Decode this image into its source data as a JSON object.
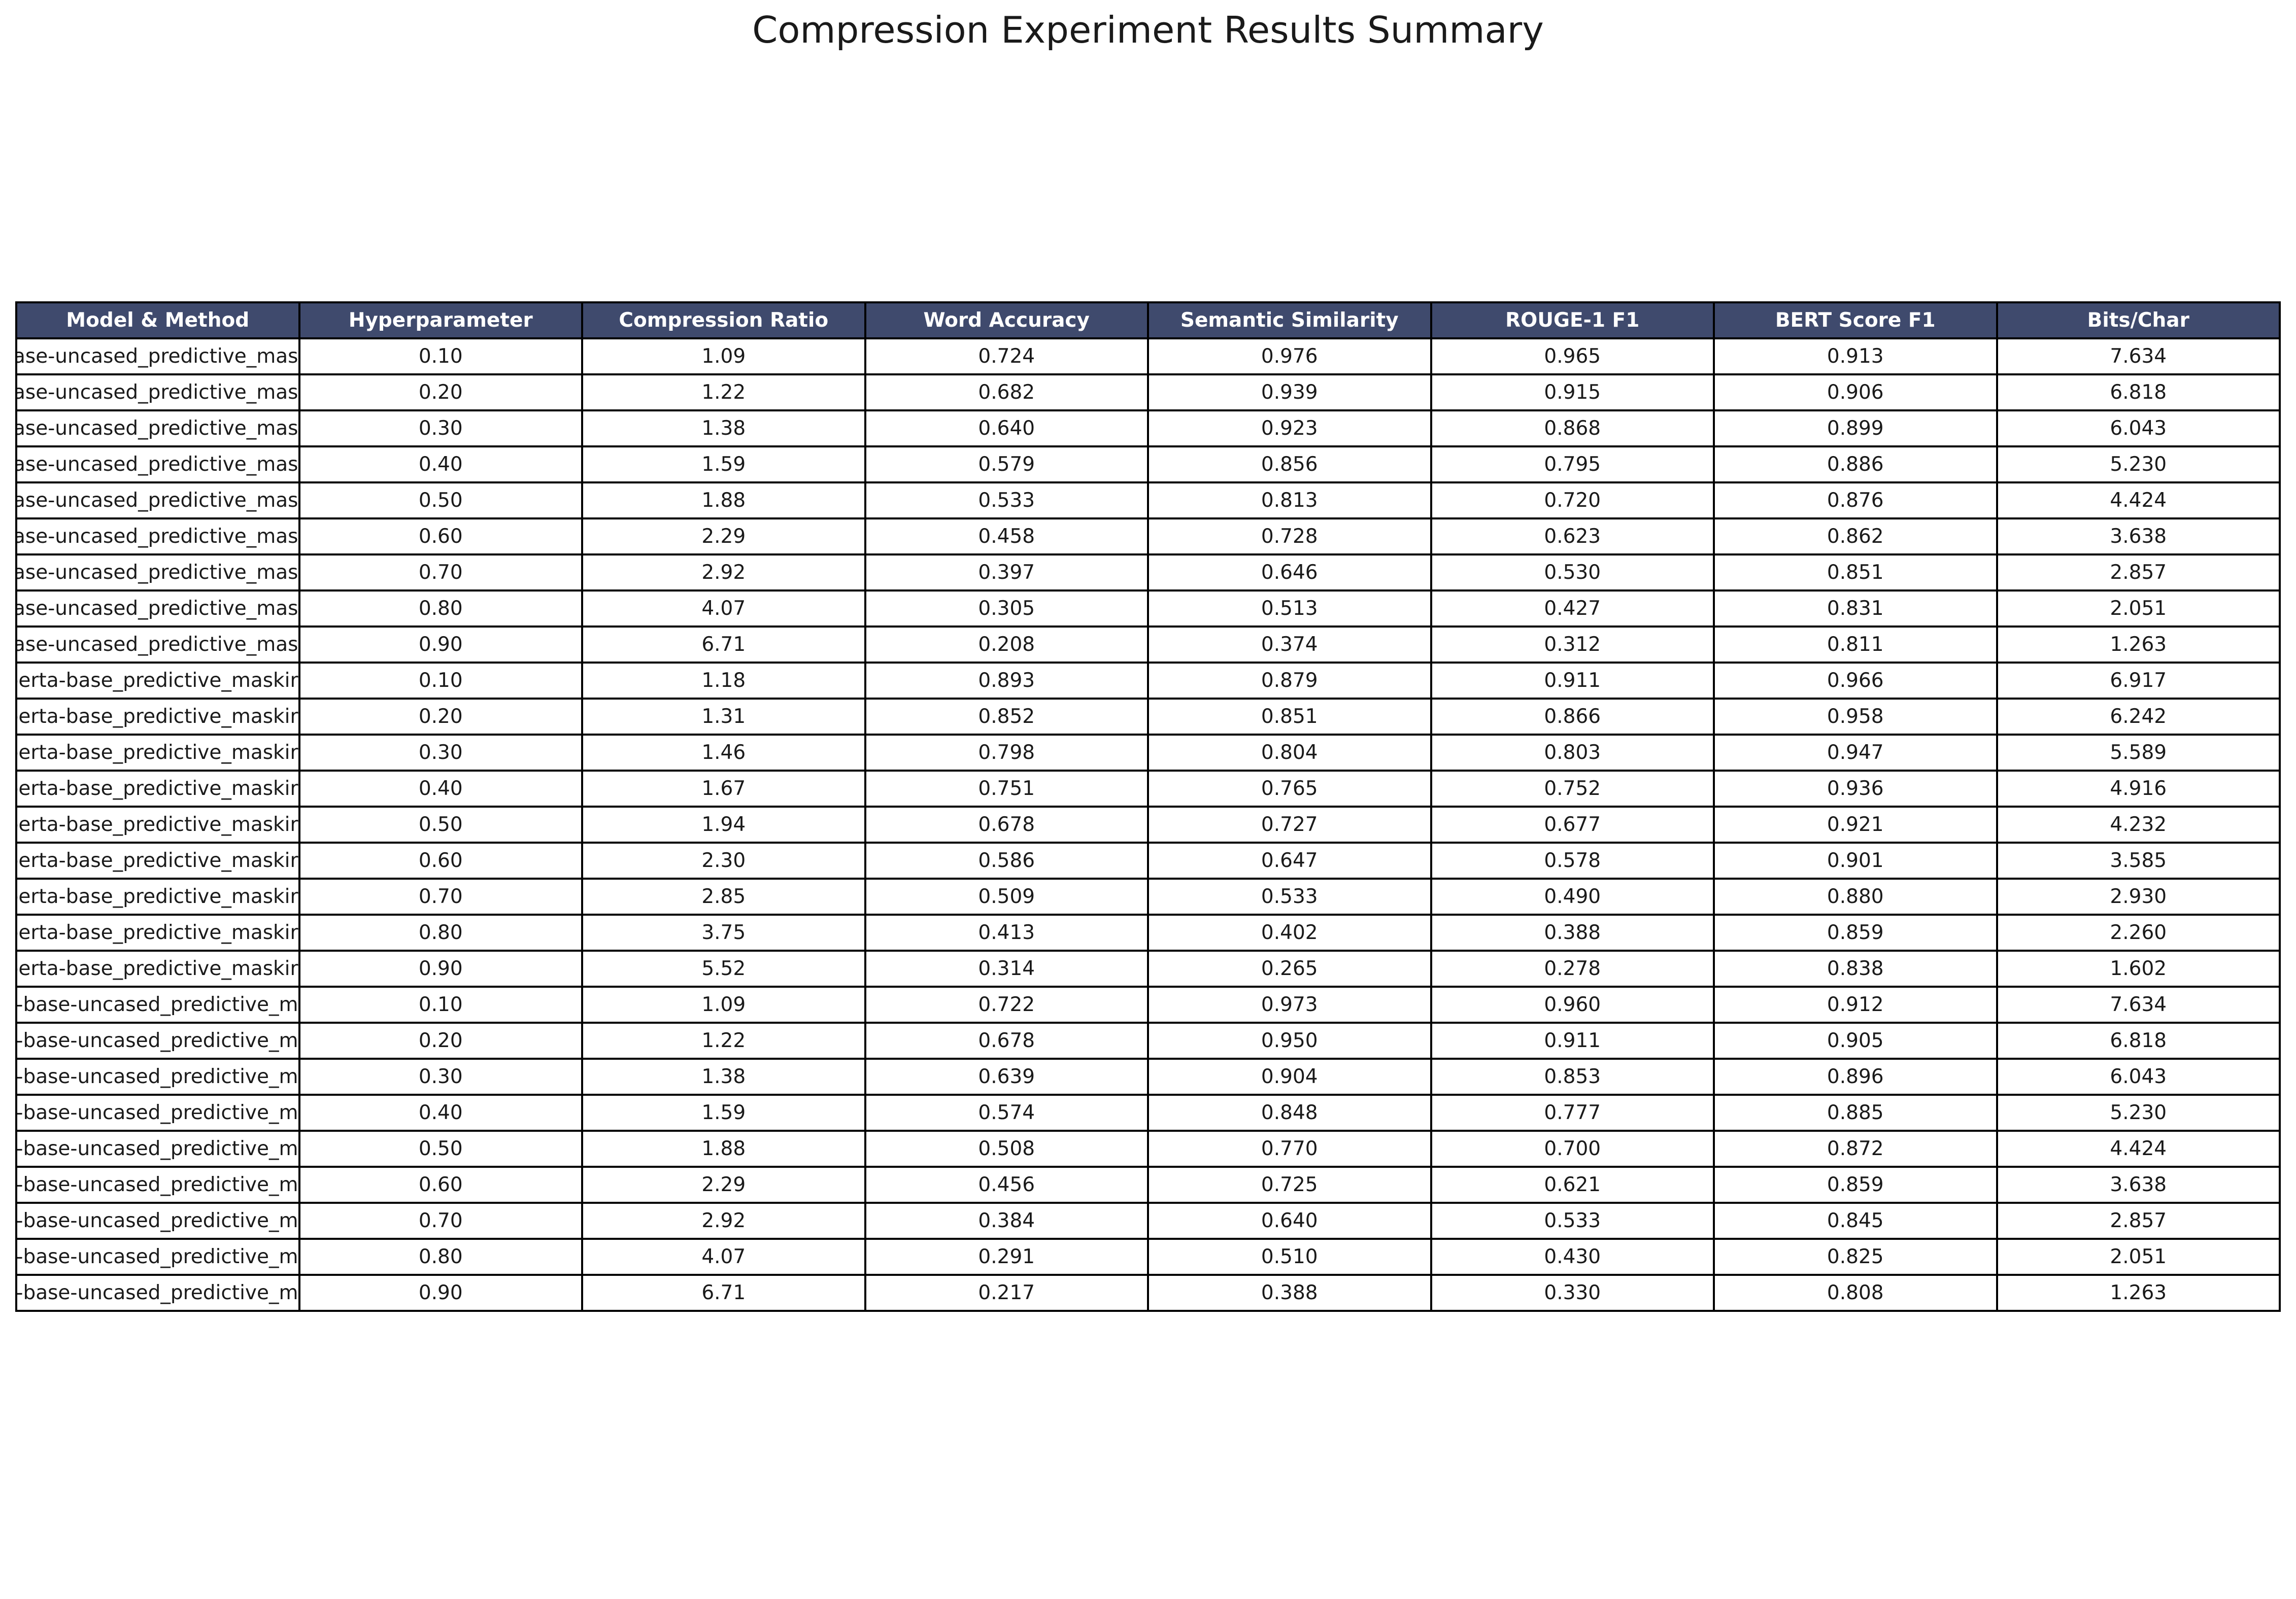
{
  "chart_data": {
    "type": "table",
    "title": "Compression Experiment Results Summary",
    "columns": [
      "Model & Method",
      "Hyperparameter",
      "Compression Ratio",
      "Word Accuracy",
      "Semantic Similarity",
      "ROUGE-1 F1",
      "BERT Score F1",
      "Bits/Char"
    ],
    "rows": [
      [
        "t-base-uncased_predictive_mas",
        "0.10",
        "1.09",
        "0.724",
        "0.976",
        "0.965",
        "0.913",
        "7.634"
      ],
      [
        "t-base-uncased_predictive_mas",
        "0.20",
        "1.22",
        "0.682",
        "0.939",
        "0.915",
        "0.906",
        "6.818"
      ],
      [
        "t-base-uncased_predictive_mas",
        "0.30",
        "1.38",
        "0.640",
        "0.923",
        "0.868",
        "0.899",
        "6.043"
      ],
      [
        "t-base-uncased_predictive_mas",
        "0.40",
        "1.59",
        "0.579",
        "0.856",
        "0.795",
        "0.886",
        "5.230"
      ],
      [
        "t-base-uncased_predictive_mas",
        "0.50",
        "1.88",
        "0.533",
        "0.813",
        "0.720",
        "0.876",
        "4.424"
      ],
      [
        "t-base-uncased_predictive_mas",
        "0.60",
        "2.29",
        "0.458",
        "0.728",
        "0.623",
        "0.862",
        "3.638"
      ],
      [
        "t-base-uncased_predictive_mas",
        "0.70",
        "2.92",
        "0.397",
        "0.646",
        "0.530",
        "0.851",
        "2.857"
      ],
      [
        "t-base-uncased_predictive_mas",
        "0.80",
        "4.07",
        "0.305",
        "0.513",
        "0.427",
        "0.831",
        "2.051"
      ],
      [
        "t-base-uncased_predictive_mas",
        "0.90",
        "6.71",
        "0.208",
        "0.374",
        "0.312",
        "0.811",
        "1.263"
      ],
      [
        "rdberta-base_predictive_maskir",
        "0.10",
        "1.18",
        "0.893",
        "0.879",
        "0.911",
        "0.966",
        "6.917"
      ],
      [
        "rdberta-base_predictive_maskir",
        "0.20",
        "1.31",
        "0.852",
        "0.851",
        "0.866",
        "0.958",
        "6.242"
      ],
      [
        "rdberta-base_predictive_maskir",
        "0.30",
        "1.46",
        "0.798",
        "0.804",
        "0.803",
        "0.947",
        "5.589"
      ],
      [
        "rdberta-base_predictive_maskir",
        "0.40",
        "1.67",
        "0.751",
        "0.765",
        "0.752",
        "0.936",
        "4.916"
      ],
      [
        "rdberta-base_predictive_maskir",
        "0.50",
        "1.94",
        "0.678",
        "0.727",
        "0.677",
        "0.921",
        "4.232"
      ],
      [
        "rdberta-base_predictive_maskir",
        "0.60",
        "2.30",
        "0.586",
        "0.647",
        "0.578",
        "0.901",
        "3.585"
      ],
      [
        "rdberta-base_predictive_maskir",
        "0.70",
        "2.85",
        "0.509",
        "0.533",
        "0.490",
        "0.880",
        "2.930"
      ],
      [
        "rdberta-base_predictive_maskir",
        "0.80",
        "3.75",
        "0.413",
        "0.402",
        "0.388",
        "0.859",
        "2.260"
      ],
      [
        "rdberta-base_predictive_maskir",
        "0.90",
        "5.52",
        "0.314",
        "0.265",
        "0.278",
        "0.838",
        "1.602"
      ],
      [
        "pert-base-uncased_predictive_m",
        "0.10",
        "1.09",
        "0.722",
        "0.973",
        "0.960",
        "0.912",
        "7.634"
      ],
      [
        "pert-base-uncased_predictive_m",
        "0.20",
        "1.22",
        "0.678",
        "0.950",
        "0.911",
        "0.905",
        "6.818"
      ],
      [
        "pert-base-uncased_predictive_m",
        "0.30",
        "1.38",
        "0.639",
        "0.904",
        "0.853",
        "0.896",
        "6.043"
      ],
      [
        "pert-base-uncased_predictive_m",
        "0.40",
        "1.59",
        "0.574",
        "0.848",
        "0.777",
        "0.885",
        "5.230"
      ],
      [
        "pert-base-uncased_predictive_m",
        "0.50",
        "1.88",
        "0.508",
        "0.770",
        "0.700",
        "0.872",
        "4.424"
      ],
      [
        "pert-base-uncased_predictive_m",
        "0.60",
        "2.29",
        "0.456",
        "0.725",
        "0.621",
        "0.859",
        "3.638"
      ],
      [
        "pert-base-uncased_predictive_m",
        "0.70",
        "2.92",
        "0.384",
        "0.640",
        "0.533",
        "0.845",
        "2.857"
      ],
      [
        "pert-base-uncased_predictive_m",
        "0.80",
        "4.07",
        "0.291",
        "0.510",
        "0.430",
        "0.825",
        "2.051"
      ],
      [
        "pert-base-uncased_predictive_m",
        "0.90",
        "6.71",
        "0.217",
        "0.388",
        "0.330",
        "0.808",
        "1.263"
      ]
    ],
    "header_background": "#3f4a6d",
    "header_text_color": "#ffffff",
    "border_color": "#000000"
  }
}
